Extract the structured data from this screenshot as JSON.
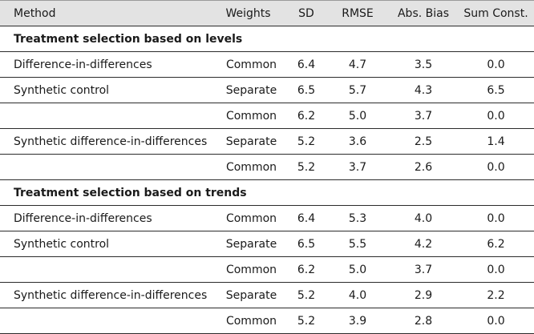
{
  "table": {
    "headers": {
      "method": "Method",
      "weights": "Weights",
      "sd": "SD",
      "rmse": "RMSE",
      "bias": "Abs. Bias",
      "sum": "Sum Const."
    },
    "sections": [
      {
        "title": "Treatment selection based on levels",
        "rows": [
          {
            "method": "Difference-in-differences",
            "weights": "Common",
            "sd": "6.4",
            "rmse": "4.7",
            "bias": "3.5",
            "sum": "0.0"
          },
          {
            "method": "Synthetic control",
            "weights": "Separate",
            "sd": "6.5",
            "rmse": "5.7",
            "bias": "4.3",
            "sum": "6.5"
          },
          {
            "method": "",
            "weights": "Common",
            "sd": "6.2",
            "rmse": "5.0",
            "bias": "3.7",
            "sum": "0.0"
          },
          {
            "method": "Synthetic difference-in-differences",
            "weights": "Separate",
            "sd": "5.2",
            "rmse": "3.6",
            "bias": "2.5",
            "sum": "1.4"
          },
          {
            "method": "",
            "weights": "Common",
            "sd": "5.2",
            "rmse": "3.7",
            "bias": "2.6",
            "sum": "0.0"
          }
        ]
      },
      {
        "title": "Treatment selection based on trends",
        "rows": [
          {
            "method": "Difference-in-differences",
            "weights": "Common",
            "sd": "6.4",
            "rmse": "5.3",
            "bias": "4.0",
            "sum": "0.0"
          },
          {
            "method": "Synthetic control",
            "weights": "Separate",
            "sd": "6.5",
            "rmse": "5.5",
            "bias": "4.2",
            "sum": "6.2"
          },
          {
            "method": "",
            "weights": "Common",
            "sd": "6.2",
            "rmse": "5.0",
            "bias": "3.7",
            "sum": "0.0"
          },
          {
            "method": "Synthetic difference-in-differences",
            "weights": "Separate",
            "sd": "5.2",
            "rmse": "4.0",
            "bias": "2.9",
            "sum": "2.2"
          },
          {
            "method": "",
            "weights": "Common",
            "sd": "5.2",
            "rmse": "3.9",
            "bias": "2.8",
            "sum": "0.0"
          }
        ]
      }
    ]
  }
}
